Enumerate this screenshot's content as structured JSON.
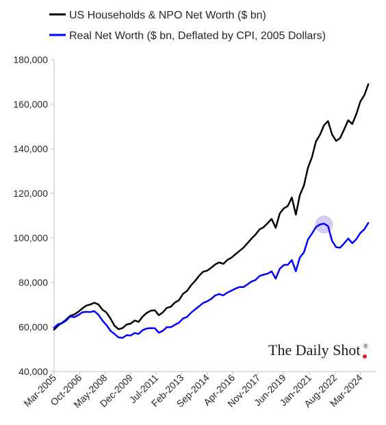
{
  "brand": {
    "label": "The Daily Shot",
    "registered": "®"
  },
  "chart_data": {
    "type": "line",
    "xlabel": "",
    "ylabel": "",
    "ylim": [
      40000,
      180000
    ],
    "yticks": [
      40000,
      60000,
      80000,
      100000,
      120000,
      140000,
      160000,
      180000
    ],
    "ytick_labels": [
      "40,000",
      "60,000",
      "80,000",
      "100,000",
      "120,000",
      "140,000",
      "160,000",
      "180,000"
    ],
    "xlim": [
      "2005-03",
      "2025-03"
    ],
    "xticks": [
      "2005-03",
      "2006-10",
      "2008-05",
      "2009-12",
      "2011-07",
      "2013-02",
      "2014-09",
      "2016-04",
      "2017-11",
      "2019-06",
      "2021-01",
      "2022-08",
      "2024-03"
    ],
    "xtick_labels": [
      "Mar-2005",
      "Oct-2006",
      "May-2008",
      "Dec-2009",
      "Jul-2011",
      "Feb-2013",
      "Sep-2014",
      "Apr-2016",
      "Nov-2017",
      "Jun-2019",
      "Jan-2021",
      "Aug-2022",
      "Mar-2024"
    ],
    "grid": false,
    "legend_position": "top-left",
    "highlight": {
      "series": 1,
      "x": "2021-12",
      "y": 106000,
      "color": "#c9b8f0"
    },
    "series": [
      {
        "name": "US Households & NPO Net Worth ($ bn)",
        "color": "#000000",
        "x": [
          "2005-03",
          "2005-06",
          "2005-09",
          "2005-12",
          "2006-03",
          "2006-06",
          "2006-09",
          "2006-12",
          "2007-03",
          "2007-06",
          "2007-09",
          "2007-12",
          "2008-03",
          "2008-06",
          "2008-09",
          "2008-12",
          "2009-03",
          "2009-06",
          "2009-09",
          "2009-12",
          "2010-03",
          "2010-06",
          "2010-09",
          "2010-12",
          "2011-03",
          "2011-06",
          "2011-09",
          "2011-12",
          "2012-03",
          "2012-06",
          "2012-09",
          "2012-12",
          "2013-03",
          "2013-06",
          "2013-09",
          "2013-12",
          "2014-03",
          "2014-06",
          "2014-09",
          "2014-12",
          "2015-03",
          "2015-06",
          "2015-09",
          "2015-12",
          "2016-03",
          "2016-06",
          "2016-09",
          "2016-12",
          "2017-03",
          "2017-06",
          "2017-09",
          "2017-12",
          "2018-03",
          "2018-06",
          "2018-09",
          "2018-12",
          "2019-03",
          "2019-06",
          "2019-09",
          "2019-12",
          "2020-03",
          "2020-06",
          "2020-09",
          "2020-12",
          "2021-03",
          "2021-06",
          "2021-09",
          "2021-12",
          "2022-03",
          "2022-06",
          "2022-09",
          "2022-12",
          "2023-03",
          "2023-06",
          "2023-09",
          "2023-12",
          "2024-03",
          "2024-06",
          "2024-09"
        ],
        "values": [
          58800,
          60600,
          61900,
          63300,
          65000,
          65600,
          66800,
          68300,
          69600,
          70100,
          70900,
          70100,
          67800,
          66500,
          63800,
          60600,
          59000,
          59500,
          61100,
          61500,
          62900,
          62300,
          64700,
          66300,
          67300,
          67500,
          65300,
          66600,
          68600,
          69100,
          71000,
          72000,
          74900,
          76200,
          78700,
          80700,
          83000,
          84800,
          85300,
          86600,
          88100,
          89000,
          88300,
          90100,
          91100,
          92600,
          94100,
          95600,
          97600,
          99700,
          101500,
          103800,
          104800,
          106600,
          108500,
          104500,
          110900,
          113200,
          114300,
          118100,
          110400,
          119200,
          123400,
          131400,
          136200,
          143300,
          146300,
          150600,
          152400,
          146400,
          143500,
          144800,
          148700,
          152800,
          151100,
          155500,
          161200,
          164000,
          169000
        ]
      },
      {
        "name": "Real Net Worth ($ bn, Deflated by CPI, 2005 Dollars)",
        "color": "#0000ff",
        "x": [
          "2005-03",
          "2005-06",
          "2005-09",
          "2005-12",
          "2006-03",
          "2006-06",
          "2006-09",
          "2006-12",
          "2007-03",
          "2007-06",
          "2007-09",
          "2007-12",
          "2008-03",
          "2008-06",
          "2008-09",
          "2008-12",
          "2009-03",
          "2009-06",
          "2009-09",
          "2009-12",
          "2010-03",
          "2010-06",
          "2010-09",
          "2010-12",
          "2011-03",
          "2011-06",
          "2011-09",
          "2011-12",
          "2012-03",
          "2012-06",
          "2012-09",
          "2012-12",
          "2013-03",
          "2013-06",
          "2013-09",
          "2013-12",
          "2014-03",
          "2014-06",
          "2014-09",
          "2014-12",
          "2015-03",
          "2015-06",
          "2015-09",
          "2015-12",
          "2016-03",
          "2016-06",
          "2016-09",
          "2016-12",
          "2017-03",
          "2017-06",
          "2017-09",
          "2017-12",
          "2018-03",
          "2018-06",
          "2018-09",
          "2018-12",
          "2019-03",
          "2019-06",
          "2019-09",
          "2019-12",
          "2020-03",
          "2020-06",
          "2020-09",
          "2020-12",
          "2021-03",
          "2021-06",
          "2021-09",
          "2021-12",
          "2022-03",
          "2022-06",
          "2022-09",
          "2022-12",
          "2023-03",
          "2023-06",
          "2023-09",
          "2023-12",
          "2024-03",
          "2024-06",
          "2024-09"
        ],
        "values": [
          59600,
          61300,
          61700,
          62900,
          64700,
          64400,
          65300,
          66600,
          66800,
          66700,
          67100,
          65500,
          62900,
          60900,
          58300,
          56900,
          55300,
          55100,
          56300,
          56200,
          57300,
          56900,
          58600,
          59300,
          59500,
          59400,
          57400,
          58300,
          59900,
          59900,
          61000,
          61900,
          63800,
          64500,
          66400,
          67900,
          69300,
          70800,
          71500,
          72600,
          74200,
          74800,
          74200,
          75400,
          76300,
          77200,
          77900,
          77900,
          79100,
          80400,
          81100,
          82900,
          83500,
          83900,
          85000,
          81700,
          86100,
          87800,
          87900,
          90000,
          85000,
          91200,
          93400,
          99200,
          101900,
          104900,
          106000,
          106400,
          105300,
          98600,
          95800,
          95600,
          97500,
          99700,
          97600,
          99400,
          102200,
          103800,
          106700
        ]
      }
    ]
  }
}
